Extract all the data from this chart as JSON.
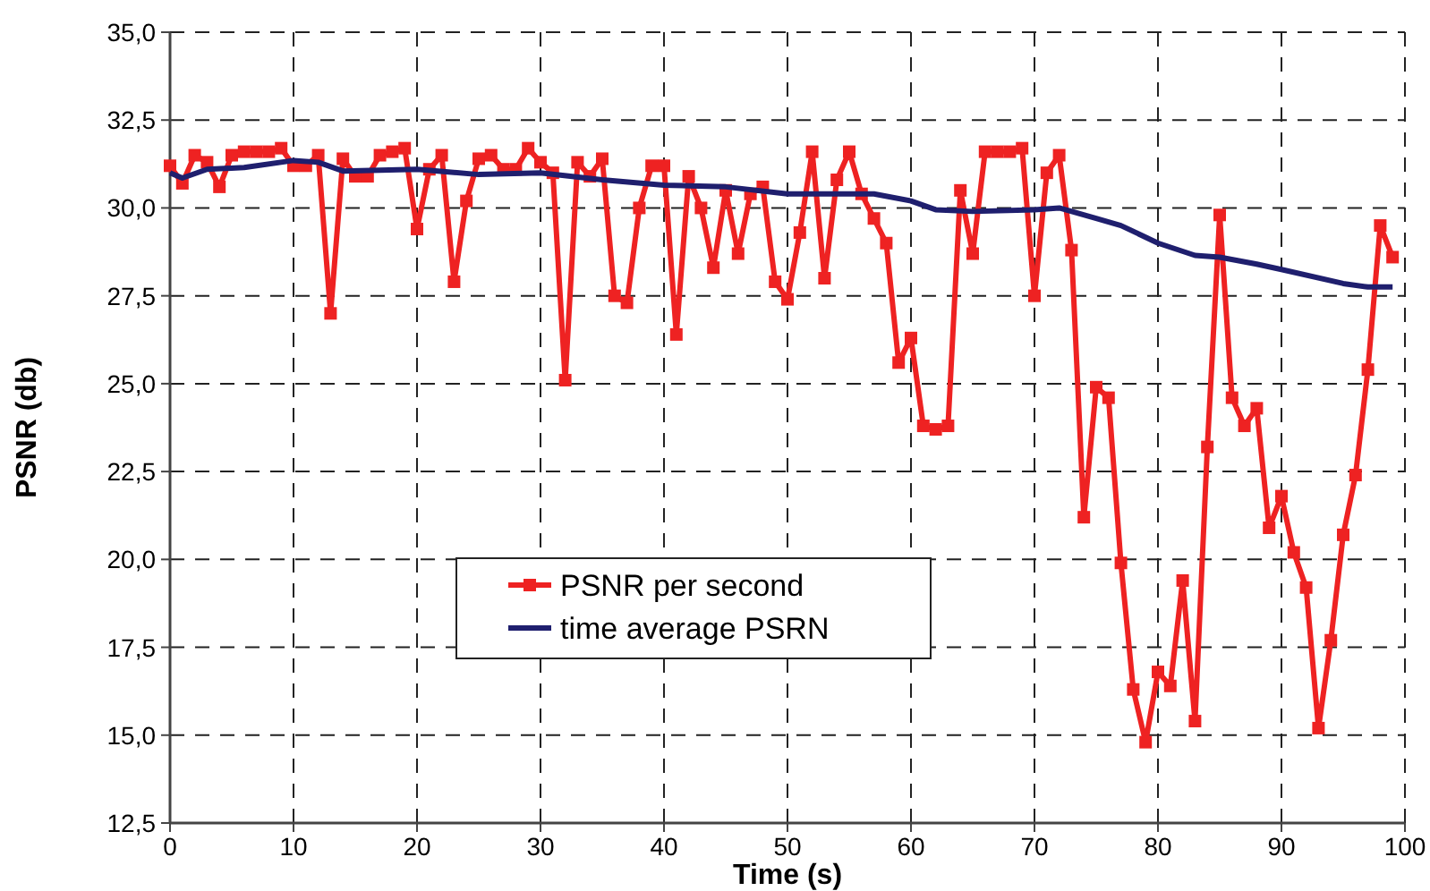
{
  "chart_data": {
    "type": "line",
    "xlabel": "Time (s)",
    "ylabel": "PSNR (db)",
    "xlim": [
      0,
      100
    ],
    "xticks": [
      0,
      10,
      20,
      30,
      40,
      50,
      60,
      70,
      80,
      90,
      100
    ],
    "ylim": [
      12.5,
      35
    ],
    "yticks": [
      {
        "value": 12.5,
        "label": "12,5"
      },
      {
        "value": 15,
        "label": "15,0"
      },
      {
        "value": 17.5,
        "label": "17,5"
      },
      {
        "value": 20,
        "label": "20,0"
      },
      {
        "value": 22.5,
        "label": "22,5"
      },
      {
        "value": 25,
        "label": "25,0"
      },
      {
        "value": 27.5,
        "label": "27,5"
      },
      {
        "value": 30,
        "label": "30,0"
      },
      {
        "value": 32.5,
        "label": "32,5"
      },
      {
        "value": 35,
        "label": "35,0"
      }
    ],
    "grid": true,
    "legend": "bottom",
    "series": [
      {
        "name": "PSNR per second",
        "color": "#ee2222",
        "marker": "square",
        "x": [
          0,
          1,
          2,
          3,
          4,
          5,
          6,
          7,
          8,
          9,
          10,
          11,
          12,
          13,
          14,
          15,
          16,
          17,
          18,
          19,
          20,
          21,
          22,
          23,
          24,
          25,
          26,
          27,
          28,
          29,
          30,
          31,
          32,
          33,
          34,
          35,
          36,
          37,
          38,
          39,
          40,
          41,
          42,
          43,
          44,
          45,
          46,
          47,
          48,
          49,
          50,
          51,
          52,
          53,
          54,
          55,
          56,
          57,
          58,
          59,
          60,
          61,
          62,
          63,
          64,
          65,
          66,
          67,
          68,
          69,
          70,
          71,
          72,
          73,
          74,
          75,
          76,
          77,
          78,
          79,
          80,
          81,
          82,
          83,
          84,
          85,
          86,
          87,
          88,
          89,
          90,
          91,
          92,
          93,
          94,
          95,
          96,
          97,
          98,
          99
        ],
        "values": [
          31.2,
          30.7,
          31.5,
          31.3,
          30.6,
          31.5,
          31.6,
          31.6,
          31.6,
          31.7,
          31.2,
          31.2,
          31.5,
          27.0,
          31.4,
          30.9,
          30.9,
          31.5,
          31.6,
          31.7,
          29.4,
          31.1,
          31.5,
          27.9,
          30.2,
          31.4,
          31.5,
          31.1,
          31.1,
          31.7,
          31.3,
          31.0,
          25.1,
          31.3,
          30.9,
          31.4,
          27.5,
          27.3,
          30.0,
          31.2,
          31.2,
          26.4,
          30.9,
          30.0,
          28.3,
          30.5,
          28.7,
          30.4,
          30.6,
          27.9,
          27.4,
          29.3,
          31.6,
          28.0,
          30.8,
          31.6,
          30.4,
          29.7,
          29.0,
          25.6,
          26.3,
          23.8,
          23.7,
          23.8,
          30.5,
          28.7,
          31.6,
          31.6,
          31.6,
          31.7,
          27.5,
          31.0,
          31.5,
          28.8,
          21.2,
          24.9,
          24.6,
          19.9,
          16.3,
          14.8,
          16.8,
          16.4,
          19.4,
          15.4,
          23.2,
          29.8,
          24.6,
          23.8,
          24.3,
          20.9,
          21.8,
          20.2,
          19.2,
          15.2,
          17.7,
          20.7,
          22.4,
          25.4,
          29.5,
          28.6
        ]
      },
      {
        "name": "time average PSRN",
        "color": "#1f1f6e",
        "marker": "none",
        "x": [
          0,
          1,
          3,
          6,
          10,
          12,
          14,
          20,
          25,
          30,
          35,
          40,
          45,
          50,
          55,
          57,
          60,
          62,
          65,
          70,
          72,
          75,
          77,
          80,
          83,
          85,
          88,
          90,
          95,
          97,
          99
        ],
        "values": [
          31.0,
          30.85,
          31.1,
          31.15,
          31.35,
          31.3,
          31.05,
          31.1,
          30.95,
          31.0,
          30.8,
          30.65,
          30.6,
          30.4,
          30.4,
          30.4,
          30.2,
          29.95,
          29.9,
          29.95,
          30.0,
          29.7,
          29.5,
          29.0,
          28.65,
          28.6,
          28.4,
          28.25,
          27.85,
          27.75,
          27.75
        ]
      }
    ]
  }
}
